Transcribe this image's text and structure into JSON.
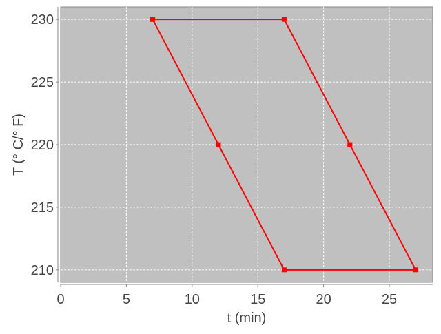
{
  "chart_data": {
    "type": "line",
    "title": "",
    "xlabel": "t (min)",
    "ylabel": "T (° C/° F)",
    "xlim": [
      0,
      28.3
    ],
    "ylim": [
      209,
      231
    ],
    "xticks": [
      0,
      5,
      10,
      15,
      20,
      25
    ],
    "yticks": [
      210,
      215,
      220,
      225,
      230
    ],
    "grid": true,
    "legend": "none",
    "colors": {
      "series": "#ff0000",
      "plot_background": "#c0c0c0",
      "grid": "#ffffff"
    },
    "series": [
      {
        "x": [
          7,
          17,
          22,
          27,
          17,
          12,
          7
        ],
        "y": [
          230,
          230,
          220,
          210,
          210,
          220,
          230
        ]
      }
    ]
  }
}
